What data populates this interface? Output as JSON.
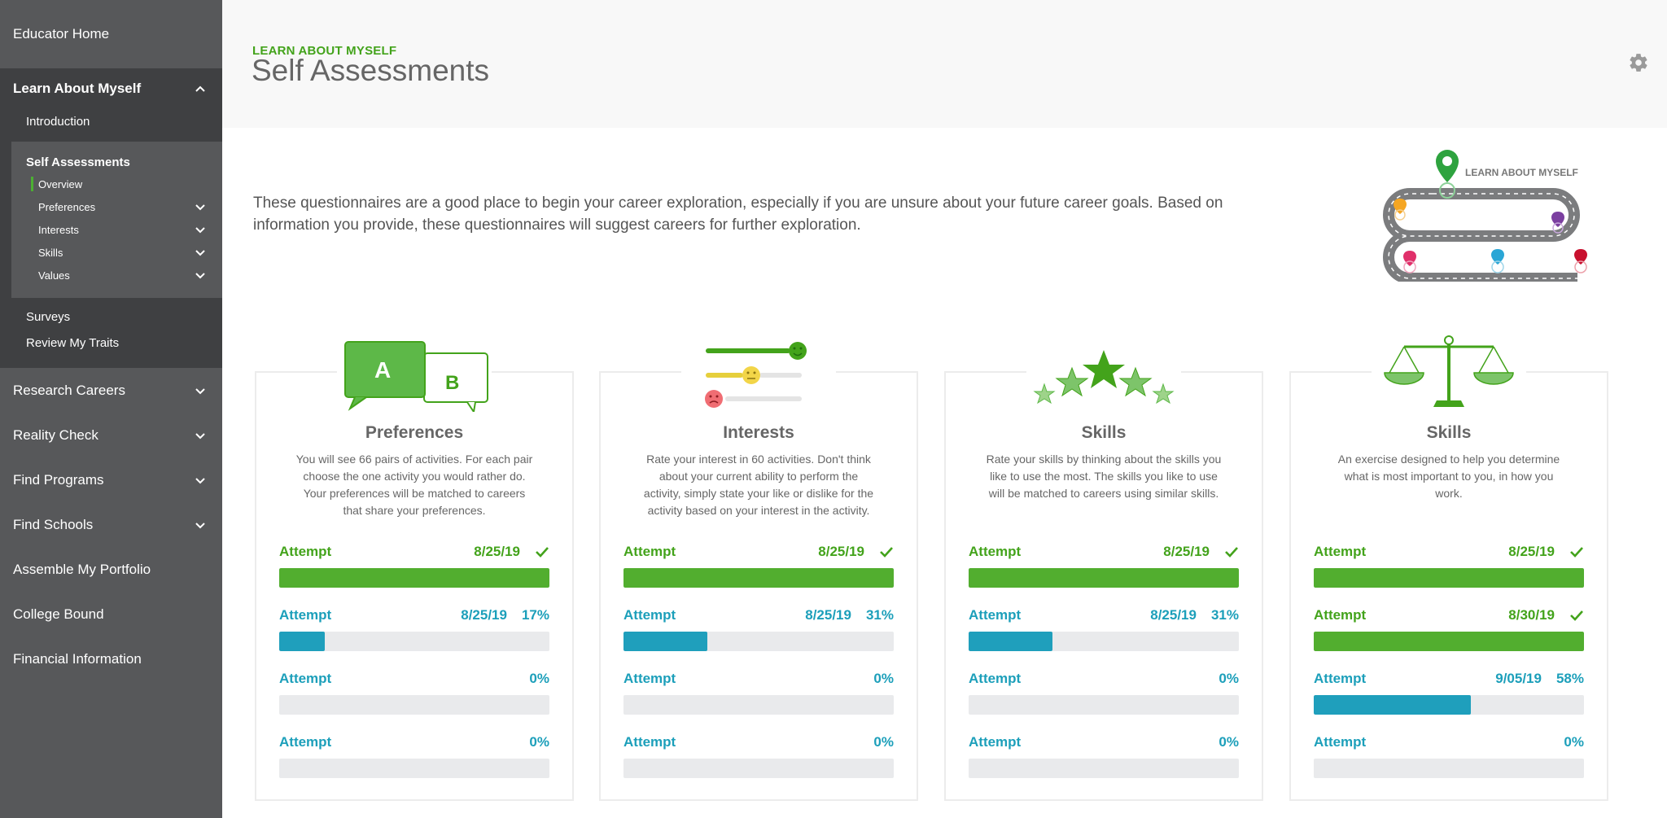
{
  "sidebar": {
    "educator_home": "Educator Home",
    "learn_about_myself": "Learn About Myself",
    "introduction": "Introduction",
    "self_assessments": "Self Assessments",
    "sub_items": [
      "Overview",
      "Preferences",
      "Interests",
      "Skills",
      "Values"
    ],
    "surveys": "Surveys",
    "review_traits": "Review My Traits",
    "lower_items": [
      "Research Careers",
      "Reality Check",
      "Find Programs",
      "Find Schools",
      "Assemble My Portfolio",
      "College Bound",
      "Financial Information"
    ]
  },
  "header": {
    "eyebrow": "LEARN ABOUT MYSELF",
    "title": "Self Assessments"
  },
  "intro": "These questionnaires are a good place to begin your career exploration, especially if you are unsure about your future career goals. Based on information you provide, these questionnaires will suggest careers for further exploration.",
  "roadmap": {
    "label": "LEARN ABOUT MYSELF"
  },
  "colors": {
    "green": "#52ae2f",
    "teal": "#1f9fbc",
    "sidebar": "#57585a"
  },
  "cards": [
    {
      "title": "Preferences",
      "icon": "ab-speech-bubbles-icon",
      "icon_a": "A",
      "icon_b": "B",
      "desc": "You will see 66 pairs of activities. For each pair choose the one activity you would rather do. Your preferences will be matched to careers that share your preferences.",
      "attempts": [
        {
          "label": "Attempt",
          "date": "8/25/19",
          "status": "complete",
          "progress": 100
        },
        {
          "label": "Attempt",
          "date": "8/25/19",
          "percent": "17%",
          "status": "in-progress",
          "progress": 17
        },
        {
          "label": "Attempt",
          "date": "",
          "percent": "0%",
          "status": "empty",
          "progress": 0
        },
        {
          "label": "Attempt",
          "date": "",
          "percent": "0%",
          "status": "empty",
          "progress": 0
        }
      ]
    },
    {
      "title": "Interests",
      "icon": "smiley-rating-icon",
      "desc": "Rate your interest in 60 activities. Don't think about your current ability to perform the activity, simply state your like or dislike for the activity based on your interest in the activity.",
      "attempts": [
        {
          "label": "Attempt",
          "date": "8/25/19",
          "status": "complete",
          "progress": 100
        },
        {
          "label": "Attempt",
          "date": "8/25/19",
          "percent": "31%",
          "status": "in-progress",
          "progress": 31
        },
        {
          "label": "Attempt",
          "date": "",
          "percent": "0%",
          "status": "empty",
          "progress": 0
        },
        {
          "label": "Attempt",
          "date": "",
          "percent": "0%",
          "status": "empty",
          "progress": 0
        }
      ]
    },
    {
      "title": "Skills",
      "icon": "stars-icon",
      "desc": "Rate your skills by thinking about the skills you like to use the most. The skills you like to use will be matched to careers using similar skills.",
      "attempts": [
        {
          "label": "Attempt",
          "date": "8/25/19",
          "status": "complete",
          "progress": 100
        },
        {
          "label": "Attempt",
          "date": "8/25/19",
          "percent": "31%",
          "status": "in-progress",
          "progress": 31
        },
        {
          "label": "Attempt",
          "date": "",
          "percent": "0%",
          "status": "empty",
          "progress": 0
        },
        {
          "label": "Attempt",
          "date": "",
          "percent": "0%",
          "status": "empty",
          "progress": 0
        }
      ]
    },
    {
      "title": "Skills",
      "icon": "balance-scale-icon",
      "desc": "An exercise designed to help you determine what is most important to you, in how you work.",
      "attempts": [
        {
          "label": "Attempt",
          "date": "8/25/19",
          "status": "complete",
          "progress": 100
        },
        {
          "label": "Attempt",
          "date": "8/30/19",
          "status": "complete",
          "progress": 100
        },
        {
          "label": "Attempt",
          "date": "9/05/19",
          "percent": "58%",
          "status": "in-progress",
          "progress": 58
        },
        {
          "label": "Attempt",
          "date": "",
          "percent": "0%",
          "status": "empty",
          "progress": 0
        }
      ]
    }
  ]
}
